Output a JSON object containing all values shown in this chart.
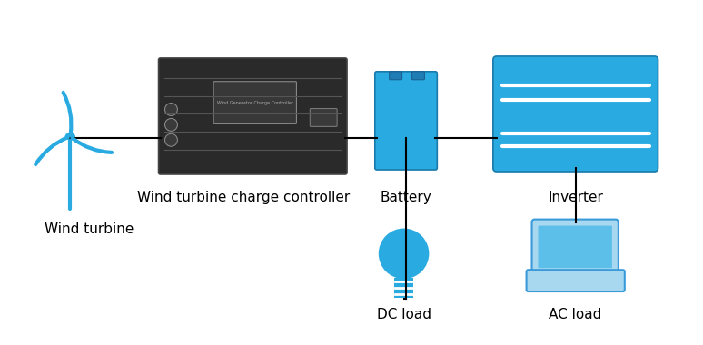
{
  "background_color": "#ffffff",
  "line_color": "#000000",
  "blue_color": "#29ABE2",
  "light_blue": "#87CEEB",
  "dark_blue": "#1E90FF",
  "controller_color": "#2a2a2a",
  "labels": {
    "wind_turbine": "Wind turbine",
    "controller": "Wind turbine charge controller",
    "battery": "Battery",
    "inverter": "Inverter",
    "dc_load": "DC load",
    "ac_load": "AC load"
  },
  "label_fontsize": 11,
  "figsize": [
    7.74,
    3.8
  ],
  "dpi": 100
}
